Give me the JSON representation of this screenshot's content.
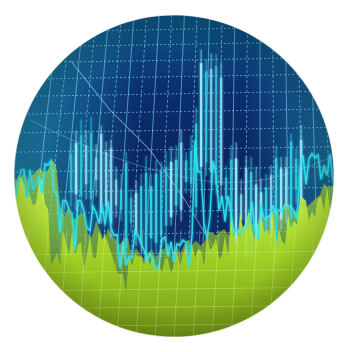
{
  "image": {
    "subject": "financial-chart-photo",
    "palette": {
      "deep_blue": "#0b1f5c",
      "mid_blue": "#1f4fb8",
      "cyan": "#2fd6e6",
      "teal": "#1aa6a8",
      "lime": "#c9f23a",
      "yellow_green": "#a6d61f",
      "olive": "#6f8f12",
      "grid": "#7fe8ff"
    }
  }
}
